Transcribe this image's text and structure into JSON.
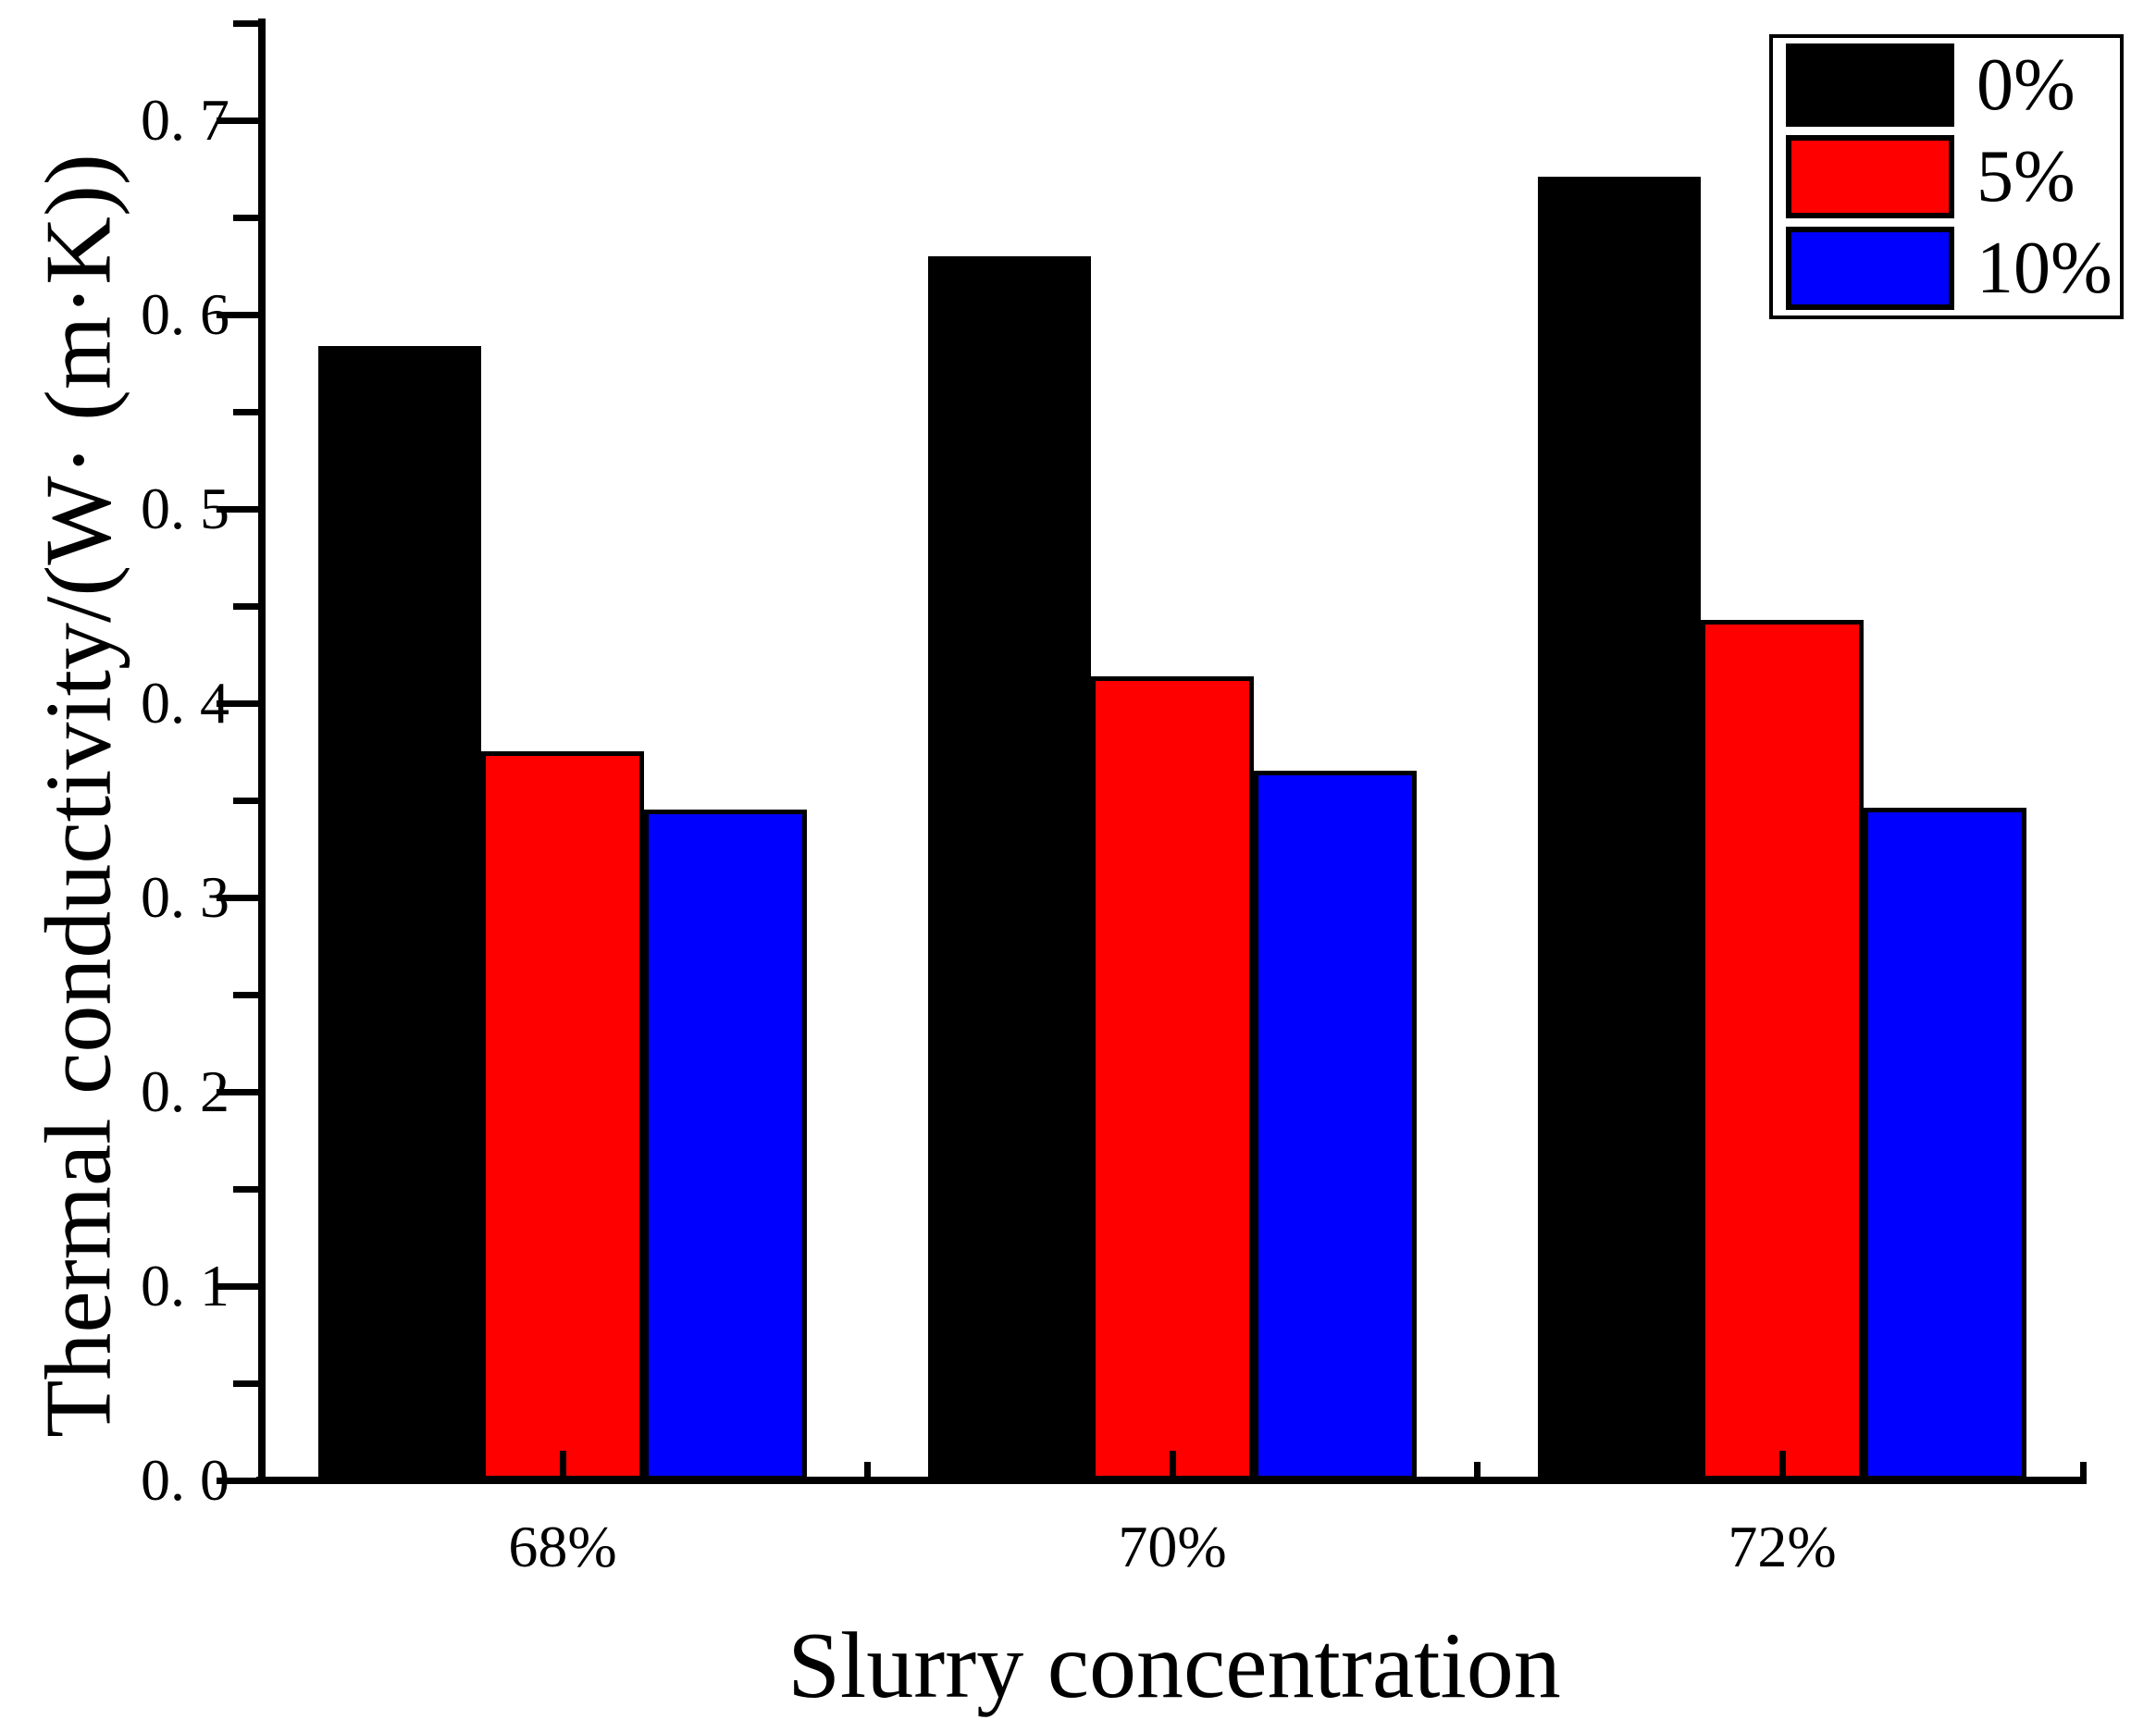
{
  "chart_data": {
    "type": "bar",
    "title": "",
    "xlabel": "Slurry concentration",
    "ylabel": "Thermal conductivity/(W· (m·K))",
    "categories": [
      "68%",
      "70%",
      "72%"
    ],
    "series": [
      {
        "name": "0%",
        "color": "#000000",
        "values": [
          0.584,
          0.63,
          0.671
        ]
      },
      {
        "name": "5%",
        "color": "#FF0000",
        "values": [
          0.375,
          0.414,
          0.443
        ]
      },
      {
        "name": "10%",
        "color": "#0000FF",
        "values": [
          0.345,
          0.365,
          0.346
        ]
      }
    ],
    "ylim": [
      0,
      0.75
    ],
    "y_major_step": 0.1,
    "y_minor_step": 0.05,
    "y_tick_labels": [
      "0. 0",
      "0. 1",
      "0. 2",
      "0. 3",
      "0. 4",
      "0. 5",
      "0. 6",
      "0. 7"
    ],
    "legend_position": "top-right",
    "grid": false,
    "axis_color": "#000000",
    "background_color": "#FFFFFF"
  }
}
